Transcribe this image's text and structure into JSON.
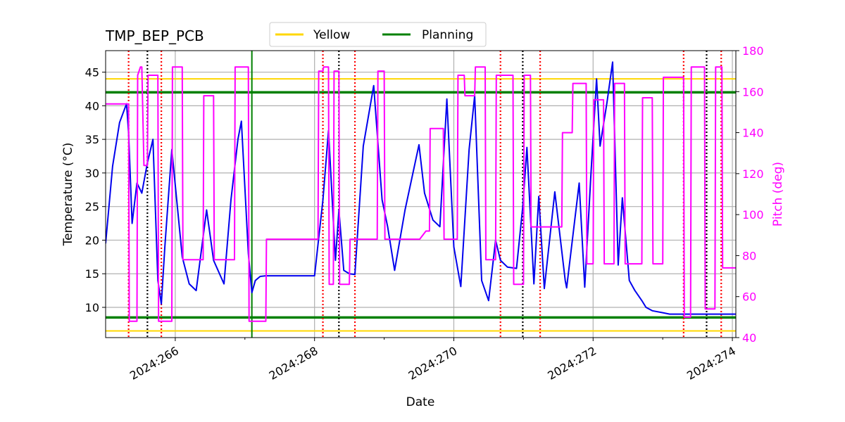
{
  "chart_data": {
    "type": "line",
    "title": "TMP_BEP_PCB",
    "xlabel": "Date",
    "ylabel": "Temperature ($^\\circ$C)",
    "ylabel_display": "Temperature (°C)",
    "y2label": "Pitch (deg)",
    "xlim": [
      265.0,
      274.05
    ],
    "ylim": [
      5.5,
      48.2
    ],
    "y2lim": [
      40,
      180
    ],
    "x_ticks": [
      {
        "value": 266,
        "label": "2024:266"
      },
      {
        "value": 268,
        "label": "2024:268"
      },
      {
        "value": 270,
        "label": "2024:270"
      },
      {
        "value": 272,
        "label": "2024:272"
      },
      {
        "value": 274,
        "label": "2024:274"
      }
    ],
    "x_minor_ticks": [
      267,
      269,
      271,
      273
    ],
    "y_ticks": [
      10,
      15,
      20,
      25,
      30,
      35,
      40,
      45
    ],
    "y2_ticks": [
      40,
      60,
      80,
      100,
      120,
      140,
      160,
      180
    ],
    "grid": true,
    "legend": [
      {
        "label": "Yellow",
        "color": "#ffd700"
      },
      {
        "label": "Planning",
        "color": "#008000"
      }
    ],
    "legend_position": "top-center",
    "limits": {
      "yellow": [
        6.5,
        44.0
      ],
      "planning": [
        8.5,
        42.0
      ]
    },
    "green_vline": 267.1,
    "red_dotted_vlines": [
      265.33,
      265.8,
      268.12,
      268.58,
      270.67,
      271.24,
      273.3,
      273.84
    ],
    "black_dotted_vlines": [
      265.6,
      268.35,
      270.99,
      273.63
    ],
    "series": [
      {
        "name": "TMP_BEP_PCB",
        "axis": "left",
        "color": "#0000ee",
        "x": [
          265.0,
          265.1,
          265.2,
          265.3,
          265.33,
          265.38,
          265.45,
          265.52,
          265.6,
          265.68,
          265.75,
          265.8,
          265.85,
          265.95,
          266.1,
          266.2,
          266.3,
          266.45,
          266.55,
          266.7,
          266.8,
          266.9,
          266.95,
          267.05,
          267.1,
          267.15,
          267.22,
          267.3,
          267.4,
          267.6,
          268.0,
          268.12,
          268.2,
          268.3,
          268.35,
          268.42,
          268.5,
          268.58,
          268.7,
          268.85,
          268.97,
          269.05,
          269.15,
          269.3,
          269.5,
          269.58,
          269.7,
          269.8,
          269.9,
          270.0,
          270.1,
          270.22,
          270.3,
          270.4,
          270.5,
          270.6,
          270.67,
          270.77,
          270.9,
          270.99,
          271.05,
          271.15,
          271.22,
          271.3,
          271.45,
          271.6,
          271.62,
          271.8,
          271.88,
          271.97,
          272.05,
          272.1,
          272.2,
          272.28,
          272.36,
          272.42,
          272.52,
          272.6,
          272.7,
          272.76,
          272.85,
          273.0,
          273.1,
          273.2,
          273.3,
          273.38,
          273.45,
          273.55,
          273.63,
          273.72,
          273.8,
          273.9,
          274.0,
          274.05
        ],
        "y": [
          19.5,
          31.0,
          37.5,
          40.3,
          36.0,
          22.5,
          28.5,
          27.0,
          31.5,
          35.0,
          14.0,
          10.5,
          19.0,
          33.5,
          17.5,
          13.5,
          12.5,
          24.5,
          17.0,
          13.5,
          26.0,
          35.0,
          37.7,
          18.0,
          12.2,
          14.0,
          14.6,
          14.7,
          14.7,
          14.7,
          14.7,
          26.0,
          36.3,
          17.0,
          24.5,
          15.5,
          15.0,
          14.9,
          34.0,
          43.0,
          26.0,
          22.0,
          15.5,
          24.5,
          34.2,
          27.0,
          23.0,
          22.0,
          41.0,
          19.0,
          13.1,
          33.5,
          41.5,
          14.0,
          11.0,
          20.0,
          17.0,
          16.0,
          15.8,
          25.0,
          33.8,
          13.5,
          26.5,
          12.8,
          27.2,
          14.0,
          12.9,
          28.5,
          13.0,
          30.0,
          44.0,
          34.0,
          40.5,
          46.5,
          16.3,
          26.3,
          14.0,
          12.5,
          11.0,
          10.0,
          9.5,
          9.2,
          9.0,
          9.0,
          9.0,
          9.0,
          9.0,
          9.0,
          9.0,
          9.0,
          9.0,
          9.0,
          9.0,
          9.0
        ]
      },
      {
        "name": "Pitch",
        "axis": "right",
        "color": "#ff00ff",
        "x": [
          265.0,
          265.33,
          265.34,
          265.45,
          265.46,
          265.5,
          265.52,
          265.55,
          265.56,
          265.6,
          265.61,
          265.75,
          265.76,
          265.8,
          265.81,
          265.95,
          265.96,
          266.1,
          266.11,
          266.3,
          266.31,
          266.4,
          266.41,
          266.55,
          266.56,
          266.65,
          266.66,
          266.85,
          266.86,
          267.05,
          267.06,
          267.3,
          267.31,
          268.05,
          268.06,
          268.12,
          268.13,
          268.2,
          268.21,
          268.27,
          268.28,
          268.35,
          268.36,
          268.42,
          268.43,
          268.5,
          268.51,
          268.9,
          268.91,
          269.0,
          269.01,
          269.5,
          269.51,
          269.6,
          269.61,
          269.65,
          269.66,
          269.7,
          269.71,
          269.85,
          269.86,
          270.05,
          270.06,
          270.15,
          270.16,
          270.3,
          270.31,
          270.45,
          270.46,
          270.6,
          270.61,
          270.85,
          270.86,
          271.0,
          271.01,
          271.1,
          271.11,
          271.15,
          271.16,
          271.55,
          271.56,
          271.7,
          271.71,
          271.9,
          271.91,
          272.0,
          272.01,
          272.15,
          272.16,
          272.3,
          272.31,
          272.45,
          272.46,
          272.55,
          272.56,
          272.7,
          272.71,
          272.85,
          272.86,
          273.0,
          273.01,
          273.15,
          273.16,
          273.3,
          273.31,
          273.4,
          273.41,
          273.6,
          273.61,
          273.75,
          273.76,
          273.85,
          273.86,
          274.05
        ],
        "y": [
          154,
          154,
          48,
          48,
          168,
          172,
          172,
          124,
          124,
          124,
          168,
          168,
          48,
          48,
          48,
          48,
          172,
          172,
          78,
          78,
          78,
          78,
          158,
          158,
          78,
          78,
          78,
          78,
          172,
          172,
          48,
          48,
          88,
          88,
          170,
          170,
          172,
          172,
          66,
          66,
          170,
          170,
          66,
          66,
          66,
          66,
          88,
          88,
          170,
          170,
          88,
          88,
          88,
          92,
          92,
          92,
          142,
          142,
          142,
          142,
          88,
          88,
          168,
          168,
          158,
          158,
          172,
          172,
          78,
          78,
          168,
          168,
          66,
          66,
          168,
          168,
          94,
          94,
          94,
          94,
          140,
          140,
          164,
          164,
          76,
          76,
          156,
          156,
          76,
          76,
          164,
          164,
          76,
          76,
          76,
          76,
          157,
          157,
          76,
          76,
          167,
          167,
          167,
          167,
          50,
          50,
          172,
          172,
          54,
          54,
          172,
          172,
          74,
          74
        ]
      }
    ]
  }
}
